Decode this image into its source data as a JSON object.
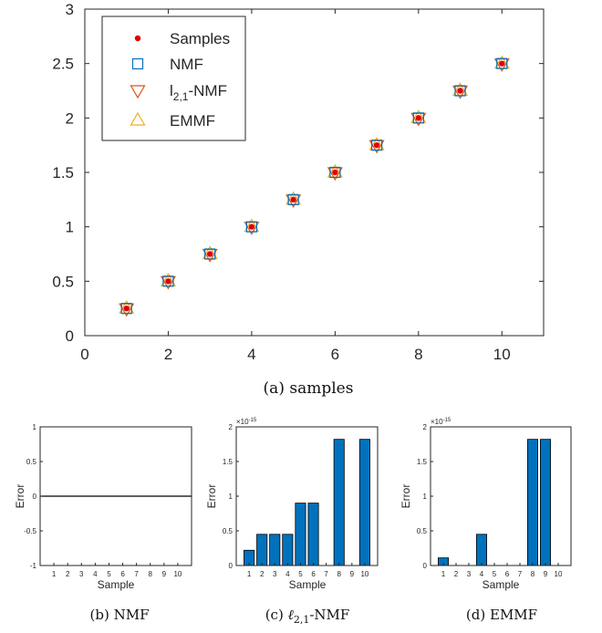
{
  "chart_data": [
    {
      "type": "scatter",
      "caption": "(a) samples",
      "xlim": [
        0,
        11
      ],
      "ylim": [
        0,
        3
      ],
      "xticks": [
        0,
        2,
        4,
        6,
        8,
        10
      ],
      "yticks": [
        0,
        0.5,
        1,
        1.5,
        2,
        2.5,
        3
      ],
      "xtick_labels": [
        "0",
        "2",
        "4",
        "6",
        "8",
        "10"
      ],
      "ytick_labels": [
        "0",
        "0.5",
        "1",
        "1.5",
        "2",
        "2.5",
        "3"
      ],
      "x": [
        1,
        2,
        3,
        4,
        5,
        6,
        7,
        8,
        9,
        10
      ],
      "series": [
        {
          "name": "Samples",
          "marker": "dot",
          "color": "#e00000",
          "values": [
            0.25,
            0.5,
            0.75,
            1.0,
            1.25,
            1.5,
            1.75,
            2.0,
            2.25,
            2.5
          ]
        },
        {
          "name": "NMF",
          "marker": "square",
          "color": "#0072bd",
          "values": [
            0.25,
            0.5,
            0.75,
            1.0,
            1.25,
            1.5,
            1.75,
            2.0,
            2.25,
            2.5
          ]
        },
        {
          "name": "l2,1-NMF",
          "marker": "triangle-down",
          "color": "#d95319",
          "values": [
            0.25,
            0.5,
            0.75,
            1.0,
            1.25,
            1.5,
            1.75,
            2.0,
            2.25,
            2.5
          ]
        },
        {
          "name": "EMMF",
          "marker": "triangle-up",
          "color": "#edb120",
          "values": [
            0.25,
            0.5,
            0.75,
            1.0,
            1.25,
            1.5,
            1.75,
            2.0,
            2.25,
            2.5
          ]
        }
      ],
      "legend_items": [
        {
          "main": "Samples",
          "sub": "",
          "tail": ""
        },
        {
          "main": "NMF",
          "sub": "",
          "tail": ""
        },
        {
          "main": "l",
          "sub": "2,1",
          "tail": "-NMF"
        },
        {
          "main": "EMMF",
          "sub": "",
          "tail": ""
        }
      ],
      "legend_position": "top-left",
      "grid": false
    },
    {
      "type": "bar",
      "caption": "(b) NMF",
      "xlabel": "Sample",
      "ylabel": "Error",
      "categories": [
        "1",
        "2",
        "3",
        "4",
        "5",
        "6",
        "7",
        "8",
        "9",
        "10"
      ],
      "values": [
        0,
        0,
        0,
        0,
        0,
        0,
        0,
        0,
        0,
        0
      ],
      "ylim": [
        -1,
        1
      ],
      "yticks": [
        -1,
        -0.5,
        0,
        0.5,
        1
      ],
      "ytick_labels": [
        "-1",
        "-0.5",
        "0",
        "0.5",
        "1"
      ],
      "exponent": "",
      "bar_color": "#0072bd"
    },
    {
      "type": "bar",
      "caption_prefix": "(c) ",
      "caption_math_main": "ℓ",
      "caption_math_sub": "2,1",
      "caption_tail": "-NMF",
      "xlabel": "Sample",
      "ylabel": "Error",
      "categories": [
        "1",
        "2",
        "3",
        "4",
        "5",
        "6",
        "7",
        "8",
        "9",
        "10"
      ],
      "values": [
        0.22,
        0.45,
        0.45,
        0.45,
        0.9,
        0.9,
        0,
        1.82,
        0,
        1.82
      ],
      "ylim": [
        0,
        2
      ],
      "yticks": [
        0,
        0.5,
        1,
        1.5,
        2
      ],
      "ytick_labels": [
        "0",
        "0.5",
        "1",
        "1.5",
        "2"
      ],
      "exponent_base": "×10",
      "exponent_power": "-15",
      "bar_color": "#0072bd"
    },
    {
      "type": "bar",
      "caption": "(d) EMMF",
      "xlabel": "Sample",
      "ylabel": "Error",
      "categories": [
        "1",
        "2",
        "3",
        "4",
        "5",
        "6",
        "7",
        "8",
        "9",
        "10"
      ],
      "values": [
        0.11,
        0,
        0,
        0.45,
        0,
        0,
        0,
        1.82,
        1.82,
        0
      ],
      "ylim": [
        0,
        2
      ],
      "yticks": [
        0,
        0.5,
        1,
        1.5,
        2
      ],
      "ytick_labels": [
        "0",
        "0.5",
        "1",
        "1.5",
        "2"
      ],
      "exponent_base": "×10",
      "exponent_power": "-15",
      "bar_color": "#0072bd"
    }
  ]
}
